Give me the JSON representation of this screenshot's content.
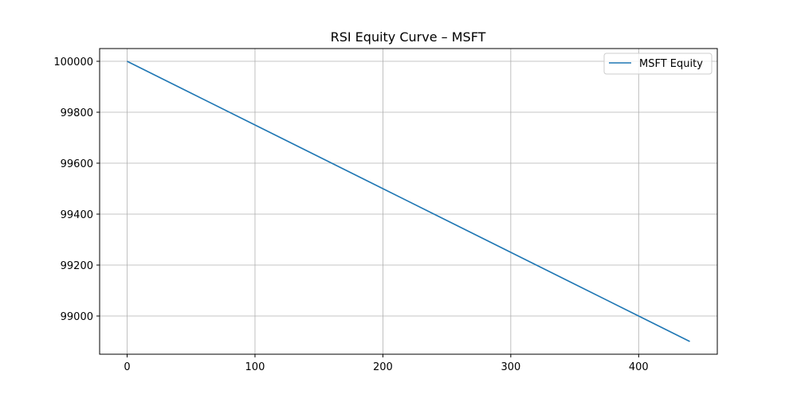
{
  "chart_data": {
    "type": "line",
    "title": "RSI Equity Curve – MSFT",
    "xlabel": "",
    "ylabel": "",
    "xlim": [
      -21.5,
      461.5
    ],
    "ylim": [
      98850,
      100050
    ],
    "xticks": [
      0,
      100,
      200,
      300,
      400
    ],
    "yticks": [
      99000,
      99200,
      99400,
      99600,
      99800,
      100000
    ],
    "grid": true,
    "legend_position": "top-right",
    "series": [
      {
        "name": "MSFT Equity",
        "color": "#1f77b4",
        "x": [
          0,
          50,
          100,
          150,
          200,
          250,
          300,
          350,
          400,
          440
        ],
        "y": [
          100000,
          99875,
          99750,
          99625,
          99500,
          99375,
          99250,
          99125,
          99000,
          98900
        ]
      }
    ]
  }
}
